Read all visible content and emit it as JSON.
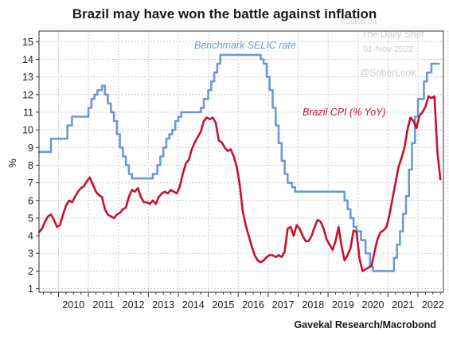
{
  "chart_data": {
    "type": "line",
    "title": "Brazil may have won the battle against inflation",
    "ylabel": "%",
    "ylim": [
      0.8,
      15.6
    ],
    "yticks": [
      "1",
      "2",
      "3",
      "4",
      "5",
      "6",
      "7",
      "8",
      "9",
      "10",
      "11",
      "12",
      "13",
      "14",
      "15"
    ],
    "xticks": [
      "2010",
      "2011",
      "2012",
      "2013",
      "2014",
      "2015",
      "2016",
      "2017",
      "2018",
      "2019",
      "2020",
      "2021",
      "2022"
    ],
    "xlim": [
      2009.35,
      2022.85
    ],
    "grid": true,
    "source": "Gavekal Research/Macrobond",
    "watermark": [
      "Posted on",
      "The Daily Shot",
      "01-Nov-2022",
      "@SoberLook"
    ],
    "colors": {
      "selic": "#6b9ad6",
      "cpi": "#c8102e",
      "grid": "#c8c8c8"
    },
    "series": [
      {
        "name": "Benchmark SELIC rate",
        "step": true,
        "x": [
          2009.35,
          2009.75,
          2010.3,
          2010.45,
          2010.6,
          2011.0,
          2011.1,
          2011.2,
          2011.3,
          2011.45,
          2011.55,
          2011.65,
          2011.75,
          2011.85,
          2011.95,
          2012.05,
          2012.15,
          2012.25,
          2012.35,
          2012.45,
          2012.55,
          2012.65,
          2012.75,
          2013.05,
          2013.15,
          2013.3,
          2013.4,
          2013.5,
          2013.6,
          2013.7,
          2013.8,
          2013.9,
          2014.0,
          2014.1,
          2014.25,
          2014.75,
          2014.85,
          2015.0,
          2015.1,
          2015.2,
          2015.3,
          2015.4,
          2015.5,
          2015.6,
          2016.75,
          2016.85,
          2016.95,
          2017.05,
          2017.15,
          2017.25,
          2017.35,
          2017.45,
          2017.55,
          2017.65,
          2017.8,
          2017.9,
          2018.0,
          2018.15,
          2019.55,
          2019.65,
          2019.75,
          2019.85,
          2019.95,
          2020.1,
          2020.25,
          2020.4,
          2020.5,
          2020.6,
          2021.2,
          2021.3,
          2021.4,
          2021.5,
          2021.6,
          2021.7,
          2021.8,
          2021.9,
          2022.0,
          2022.1,
          2022.2,
          2022.3,
          2022.45,
          2022.6,
          2022.7
        ],
        "y": [
          8.75,
          9.5,
          10.25,
          10.75,
          10.75,
          11.25,
          11.75,
          12.0,
          12.25,
          12.5,
          12.0,
          11.5,
          11.0,
          10.5,
          9.75,
          9.0,
          8.5,
          8.0,
          7.5,
          7.25,
          7.25,
          7.25,
          7.25,
          7.25,
          7.5,
          8.0,
          8.5,
          9.0,
          9.5,
          9.75,
          10.0,
          10.5,
          10.75,
          11.0,
          11.0,
          11.25,
          11.75,
          12.25,
          12.75,
          13.25,
          13.75,
          14.25,
          14.25,
          14.25,
          14.0,
          13.75,
          13.0,
          12.25,
          11.25,
          10.25,
          9.25,
          8.25,
          7.5,
          7.0,
          6.75,
          6.5,
          6.5,
          6.5,
          6.0,
          5.5,
          5.0,
          4.5,
          4.25,
          3.75,
          3.0,
          2.25,
          2.0,
          2.0,
          2.75,
          3.5,
          4.25,
          5.25,
          6.25,
          7.75,
          9.25,
          10.75,
          11.75,
          11.75,
          12.75,
          13.25,
          13.75,
          13.75,
          13.75
        ]
      },
      {
        "name": "Brazil CPI (% YoY)",
        "step": false,
        "x": [
          2009.35,
          2009.45,
          2009.55,
          2009.65,
          2009.75,
          2009.85,
          2009.95,
          2010.05,
          2010.15,
          2010.25,
          2010.35,
          2010.45,
          2010.55,
          2010.65,
          2010.75,
          2010.85,
          2010.95,
          2011.05,
          2011.15,
          2011.25,
          2011.35,
          2011.45,
          2011.55,
          2011.65,
          2011.75,
          2011.85,
          2011.95,
          2012.05,
          2012.15,
          2012.25,
          2012.35,
          2012.45,
          2012.55,
          2012.65,
          2012.75,
          2012.85,
          2012.95,
          2013.05,
          2013.15,
          2013.25,
          2013.35,
          2013.45,
          2013.55,
          2013.65,
          2013.75,
          2013.85,
          2013.95,
          2014.05,
          2014.15,
          2014.25,
          2014.35,
          2014.45,
          2014.55,
          2014.65,
          2014.75,
          2014.85,
          2014.95,
          2015.05,
          2015.15,
          2015.25,
          2015.35,
          2015.45,
          2015.55,
          2015.65,
          2015.75,
          2015.85,
          2015.95,
          2016.05,
          2016.15,
          2016.25,
          2016.35,
          2016.45,
          2016.55,
          2016.65,
          2016.75,
          2016.85,
          2016.95,
          2017.05,
          2017.15,
          2017.25,
          2017.35,
          2017.45,
          2017.55,
          2017.65,
          2017.75,
          2017.85,
          2017.95,
          2018.05,
          2018.15,
          2018.25,
          2018.35,
          2018.45,
          2018.55,
          2018.65,
          2018.75,
          2018.85,
          2018.95,
          2019.05,
          2019.15,
          2019.25,
          2019.35,
          2019.45,
          2019.55,
          2019.65,
          2019.75,
          2019.85,
          2019.95,
          2020.05,
          2020.15,
          2020.25,
          2020.35,
          2020.45,
          2020.55,
          2020.65,
          2020.75,
          2020.85,
          2020.95,
          2021.05,
          2021.15,
          2021.25,
          2021.35,
          2021.45,
          2021.55,
          2021.65,
          2021.75,
          2021.85,
          2021.95,
          2022.05,
          2022.15,
          2022.25,
          2022.35,
          2022.45,
          2022.55,
          2022.65,
          2022.75
        ],
        "y": [
          4.2,
          4.4,
          4.8,
          5.1,
          5.2,
          4.9,
          4.5,
          4.6,
          5.2,
          5.7,
          6.0,
          5.9,
          6.2,
          6.5,
          6.7,
          6.8,
          7.1,
          7.3,
          6.9,
          6.5,
          6.3,
          6.2,
          5.5,
          5.2,
          5.1,
          5.0,
          5.2,
          5.3,
          5.5,
          5.6,
          6.2,
          6.6,
          6.5,
          6.7,
          6.2,
          5.9,
          5.9,
          5.8,
          6.0,
          5.8,
          6.2,
          6.4,
          6.5,
          6.4,
          6.6,
          6.5,
          6.4,
          6.8,
          7.5,
          8.1,
          8.3,
          8.9,
          9.3,
          9.6,
          9.9,
          10.5,
          10.7,
          10.6,
          10.7,
          10.4,
          9.4,
          9.3,
          9.0,
          8.8,
          8.9,
          8.5,
          7.9,
          6.9,
          5.4,
          4.6,
          4.0,
          3.4,
          2.9,
          2.6,
          2.5,
          2.6,
          2.8,
          2.9,
          2.9,
          2.8,
          2.9,
          2.8,
          3.1,
          4.4,
          4.5,
          4.0,
          4.6,
          4.4,
          4.0,
          3.7,
          3.7,
          4.0,
          4.5,
          4.9,
          4.8,
          4.4,
          3.8,
          3.5,
          3.2,
          3.7,
          4.5,
          3.4,
          2.6,
          2.9,
          3.3,
          4.3,
          4.2,
          2.7,
          2.0,
          2.1,
          2.2,
          2.3,
          3.1,
          3.8,
          4.2,
          4.3,
          4.5,
          5.2,
          6.1,
          7.0,
          7.9,
          8.4,
          9.0,
          10.0,
          10.7,
          10.5,
          10.1,
          10.8,
          11.0,
          11.3,
          11.9,
          11.8,
          11.9,
          8.7,
          7.2
        ]
      }
    ],
    "annotations": [
      {
        "text": "Benchmark SELIC rate",
        "series": 0
      },
      {
        "text": "Brazil CPI (% YoY)",
        "series": 1
      }
    ]
  }
}
